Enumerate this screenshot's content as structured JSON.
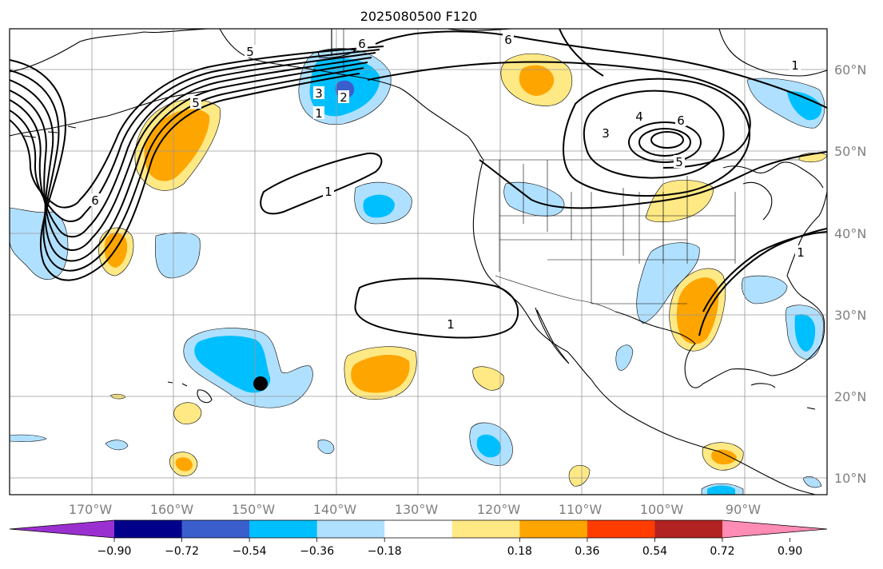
{
  "title": "2025080500 F120",
  "lon_labels": [
    "170°W",
    "160°W",
    "150°W",
    "140°W",
    "130°W",
    "120°W",
    "110°W",
    "100°W",
    "90°W"
  ],
  "lat_labels": [
    "60°N",
    "50°N",
    "40°N",
    "30°N",
    "20°N",
    "10°N"
  ],
  "colorbar": {
    "ticks": [
      "−0.90",
      "−0.72",
      "−0.54",
      "−0.36",
      "−0.18",
      "0.18",
      "0.36",
      "0.54",
      "0.72",
      "0.90"
    ],
    "colors": [
      "#9b30d0",
      "#00008b",
      "#3a5fcd",
      "#00bfff",
      "#b0e0ff",
      "#ffffff",
      "#ffe985",
      "#ffa500",
      "#ff3c00",
      "#b22222",
      "#ff8cb4"
    ]
  },
  "contour_labels": {
    "l1": "1",
    "l2": "2",
    "l3": "3",
    "l4": "4",
    "l5": "5",
    "l6": "6"
  },
  "map": {
    "land_outline_color": "#000000",
    "grid_color": "#999999",
    "marker": "storm-position"
  }
}
